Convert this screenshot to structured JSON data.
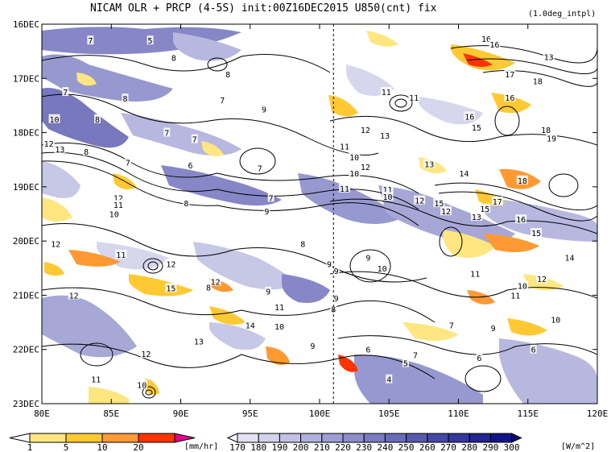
{
  "chart_data": {
    "type": "heatmap",
    "title": "NICAM  OLR + PRCP (4-5S) init:00Z16DEC2015 U850(cnt) fix",
    "subtitle": "(1.0deg_intpl)",
    "x_axis": {
      "range": [
        80,
        120
      ],
      "ticks": [
        "80E",
        "85E",
        "90E",
        "95E",
        "100E",
        "105E",
        "110E",
        "115E",
        "120E"
      ]
    },
    "y_axis": {
      "range": [
        "16DEC",
        "23DEC"
      ],
      "reversed": true,
      "ticks": [
        "16DEC",
        "17DEC",
        "18DEC",
        "19DEC",
        "20DEC",
        "21DEC",
        "22DEC",
        "23DEC"
      ]
    },
    "reference_line": {
      "x": 101,
      "style": "dashed"
    },
    "contour_labels": [
      {
        "lon": 83.5,
        "day": 0.3,
        "v": "7"
      },
      {
        "lon": 87.8,
        "day": 0.3,
        "v": "5"
      },
      {
        "lon": 89.5,
        "day": 0.62,
        "v": "8"
      },
      {
        "lon": 93.4,
        "day": 0.92,
        "v": "8"
      },
      {
        "lon": 81.7,
        "day": 1.25,
        "v": "7"
      },
      {
        "lon": 86.0,
        "day": 1.37,
        "v": "8"
      },
      {
        "lon": 93.0,
        "day": 1.4,
        "v": "7"
      },
      {
        "lon": 96.0,
        "day": 1.57,
        "v": "9"
      },
      {
        "lon": 80.9,
        "day": 1.75,
        "v": "10"
      },
      {
        "lon": 84.0,
        "day": 1.75,
        "v": "8"
      },
      {
        "lon": 89.0,
        "day": 2.0,
        "v": "7"
      },
      {
        "lon": 91.0,
        "day": 2.12,
        "v": "7"
      },
      {
        "lon": 83.2,
        "day": 2.35,
        "v": "8"
      },
      {
        "lon": 80.5,
        "day": 2.2,
        "v": "12"
      },
      {
        "lon": 81.3,
        "day": 2.3,
        "v": "13"
      },
      {
        "lon": 86.2,
        "day": 2.55,
        "v": "7"
      },
      {
        "lon": 90.7,
        "day": 2.6,
        "v": "6"
      },
      {
        "lon": 95.7,
        "day": 2.65,
        "v": "7"
      },
      {
        "lon": 101.8,
        "day": 2.25,
        "v": "11"
      },
      {
        "lon": 103.3,
        "day": 1.95,
        "v": "12"
      },
      {
        "lon": 104.7,
        "day": 2.05,
        "v": "13"
      },
      {
        "lon": 102.5,
        "day": 2.45,
        "v": "10"
      },
      {
        "lon": 103.3,
        "day": 2.63,
        "v": "12"
      },
      {
        "lon": 102.5,
        "day": 2.75,
        "v": "10"
      },
      {
        "lon": 107.9,
        "day": 2.58,
        "v": "13"
      },
      {
        "lon": 110.4,
        "day": 2.75,
        "v": "14"
      },
      {
        "lon": 104.8,
        "day": 1.25,
        "v": "11"
      },
      {
        "lon": 106.8,
        "day": 1.35,
        "v": "11"
      },
      {
        "lon": 111.3,
        "day": 1.9,
        "v": "15"
      },
      {
        "lon": 104.9,
        "day": 3.05,
        "v": "11"
      },
      {
        "lon": 104.9,
        "day": 3.18,
        "v": "10"
      },
      {
        "lon": 107.2,
        "day": 3.25,
        "v": "12"
      },
      {
        "lon": 108.6,
        "day": 3.3,
        "v": "15"
      },
      {
        "lon": 109.1,
        "day": 3.45,
        "v": "12"
      },
      {
        "lon": 85.5,
        "day": 3.2,
        "v": "12"
      },
      {
        "lon": 85.5,
        "day": 3.33,
        "v": "11"
      },
      {
        "lon": 85.2,
        "day": 3.5,
        "v": "10"
      },
      {
        "lon": 90.4,
        "day": 3.3,
        "v": "8"
      },
      {
        "lon": 96.5,
        "day": 3.2,
        "v": "7"
      },
      {
        "lon": 96.2,
        "day": 3.45,
        "v": "9"
      },
      {
        "lon": 112.8,
        "day": 3.27,
        "v": "17"
      },
      {
        "lon": 111.9,
        "day": 3.4,
        "v": "15"
      },
      {
        "lon": 111.3,
        "day": 3.55,
        "v": "13"
      },
      {
        "lon": 114.6,
        "day": 2.88,
        "v": "18"
      },
      {
        "lon": 114.5,
        "day": 3.6,
        "v": "16"
      },
      {
        "lon": 115.6,
        "day": 3.85,
        "v": "15"
      },
      {
        "lon": 118.0,
        "day": 4.3,
        "v": "14"
      },
      {
        "lon": 81.0,
        "day": 4.05,
        "v": "12"
      },
      {
        "lon": 85.7,
        "day": 4.25,
        "v": "11"
      },
      {
        "lon": 89.3,
        "day": 4.42,
        "v": "12"
      },
      {
        "lon": 98.8,
        "day": 4.05,
        "v": "8"
      },
      {
        "lon": 92.0,
        "day": 4.85,
        "v": "8"
      },
      {
        "lon": 100.7,
        "day": 4.42,
        "v": "9"
      },
      {
        "lon": 101.2,
        "day": 4.55,
        "v": "9"
      },
      {
        "lon": 103.5,
        "day": 4.3,
        "v": "9"
      },
      {
        "lon": 104.5,
        "day": 4.5,
        "v": "10"
      },
      {
        "lon": 111.2,
        "day": 4.6,
        "v": "11"
      },
      {
        "lon": 116.0,
        "day": 4.7,
        "v": "12"
      },
      {
        "lon": 114.6,
        "day": 4.82,
        "v": "10"
      },
      {
        "lon": 89.3,
        "day": 4.87,
        "v": "15"
      },
      {
        "lon": 92.5,
        "day": 4.75,
        "v": "12"
      },
      {
        "lon": 82.3,
        "day": 5.0,
        "v": "12"
      },
      {
        "lon": 101.2,
        "day": 5.05,
        "v": "9"
      },
      {
        "lon": 96.3,
        "day": 4.93,
        "v": "9"
      },
      {
        "lon": 97.1,
        "day": 5.22,
        "v": "11"
      },
      {
        "lon": 95.0,
        "day": 5.55,
        "v": "14"
      },
      {
        "lon": 97.1,
        "day": 5.57,
        "v": "10"
      },
      {
        "lon": 91.3,
        "day": 5.85,
        "v": "13"
      },
      {
        "lon": 87.5,
        "day": 6.08,
        "v": "12"
      },
      {
        "lon": 101.0,
        "day": 5.25,
        "v": "8"
      },
      {
        "lon": 109.5,
        "day": 5.55,
        "v": "7"
      },
      {
        "lon": 114.1,
        "day": 5.0,
        "v": "11"
      },
      {
        "lon": 112.5,
        "day": 5.6,
        "v": "9"
      },
      {
        "lon": 117.0,
        "day": 5.45,
        "v": "10"
      },
      {
        "lon": 99.5,
        "day": 5.93,
        "v": "9"
      },
      {
        "lon": 103.5,
        "day": 6.0,
        "v": "6"
      },
      {
        "lon": 106.9,
        "day": 6.1,
        "v": "7"
      },
      {
        "lon": 106.2,
        "day": 6.25,
        "v": "5"
      },
      {
        "lon": 111.5,
        "day": 6.15,
        "v": "6"
      },
      {
        "lon": 115.4,
        "day": 6.0,
        "v": "6"
      },
      {
        "lon": 105.0,
        "day": 6.55,
        "v": "4"
      },
      {
        "lon": 83.9,
        "day": 6.55,
        "v": "11"
      },
      {
        "lon": 87.2,
        "day": 6.65,
        "v": "10"
      },
      {
        "lon": 112.0,
        "day": 0.27,
        "v": "16"
      },
      {
        "lon": 112.6,
        "day": 0.37,
        "v": "16"
      },
      {
        "lon": 116.5,
        "day": 0.6,
        "v": "13"
      },
      {
        "lon": 113.7,
        "day": 0.92,
        "v": "17"
      },
      {
        "lon": 115.7,
        "day": 1.05,
        "v": "18"
      },
      {
        "lon": 113.7,
        "day": 1.35,
        "v": "16"
      },
      {
        "lon": 110.8,
        "day": 1.7,
        "v": "16"
      },
      {
        "lon": 116.3,
        "day": 1.95,
        "v": "18"
      },
      {
        "lon": 116.7,
        "day": 2.1,
        "v": "19"
      },
      {
        "lon": 101.8,
        "day": 3.03,
        "v": "11"
      }
    ],
    "legend_precip": {
      "values": [
        "1",
        "5",
        "10",
        "20"
      ],
      "unit": "[mm/hr]",
      "colors": [
        "#ffffff",
        "#ffe680",
        "#ffc933",
        "#ff9933",
        "#ff3300",
        "#e6008c"
      ]
    },
    "legend_olr": {
      "values": [
        "170",
        "180",
        "190",
        "200",
        "210",
        "220",
        "230",
        "240",
        "250",
        "260",
        "270",
        "280",
        "290",
        "300"
      ],
      "unit": "[W/m^2]",
      "colors": [
        "#f5f5fc",
        "#e3e3f3",
        "#d2d2ec",
        "#c1c1e4",
        "#b0b0dc",
        "#9e9ed3",
        "#8d8dcb",
        "#7b7bc2",
        "#6a6ab9",
        "#5858b0",
        "#4747a6",
        "#36369c",
        "#242492",
        "#131388",
        "#06067a"
      ]
    }
  }
}
